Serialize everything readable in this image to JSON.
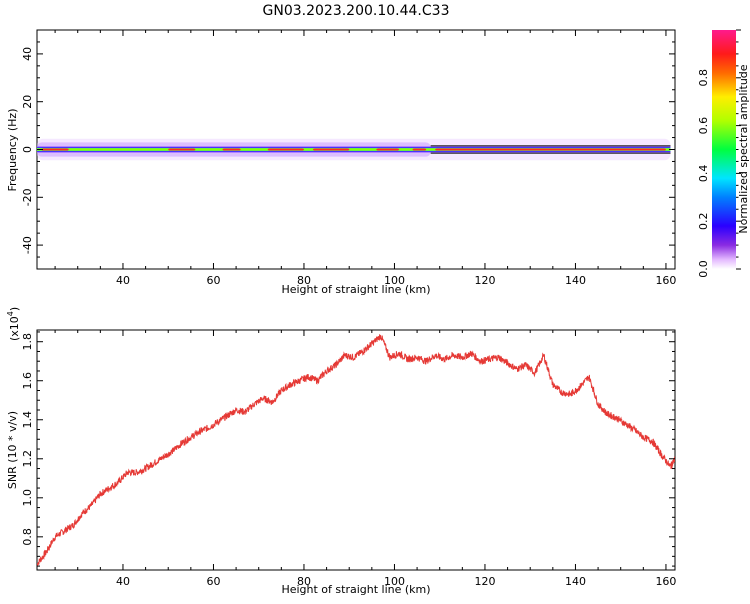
{
  "figure": {
    "title": "GN03.2023.200.10.44.C33"
  },
  "chart_data": [
    {
      "type": "heatmap",
      "xlabel": "Height of straight line (km)",
      "ylabel": "Frequency (Hz)",
      "xlim": [
        21,
        162
      ],
      "ylim": [
        -50,
        50
      ],
      "x_ticks": [
        40,
        60,
        80,
        100,
        120,
        140,
        160
      ],
      "y_ticks": [
        -40,
        -20,
        0,
        20,
        40
      ],
      "colorbar": {
        "label": "Normalized spectral amplitude",
        "range": [
          0,
          1
        ],
        "ticks": [
          "0.0",
          "0.2",
          "0.4",
          "0.6",
          "0.8"
        ],
        "colormap": "rainbow (magenta-blue-cyan-green-yellow-red-pink)"
      },
      "description_values": {
        "band_center_hz": 0,
        "band_halfwidth_hz": 1.5,
        "x_start": 21,
        "x_end": 161
      }
    },
    {
      "type": "line",
      "xlabel": "Height of straight line (km)",
      "ylabel": "SNR (10 * v/v)",
      "y_multiplier_label": "(x10",
      "y_multiplier_exp": "4",
      "y_multiplier_close": ")",
      "xlim": [
        21,
        162
      ],
      "ylim": [
        0.63,
        1.86
      ],
      "x_ticks": [
        40,
        60,
        80,
        100,
        120,
        140,
        160
      ],
      "y_ticks": [
        "0.8",
        "1.0",
        "1.2",
        "1.4",
        "1.6",
        "1.8"
      ],
      "series_color": "#e53935",
      "series": [
        {
          "x": [
            21,
            23,
            25,
            27,
            29,
            31,
            33,
            35,
            37,
            39,
            41,
            43,
            45,
            47,
            49,
            51,
            53,
            55,
            57,
            59,
            61,
            63,
            65,
            67,
            69,
            71,
            73,
            75,
            77,
            79,
            81,
            83,
            85,
            87,
            89,
            91,
            93,
            95,
            97,
            99,
            101,
            103,
            105,
            107,
            109,
            111,
            113,
            115,
            117,
            119,
            121,
            123,
            125,
            127,
            129,
            131,
            133,
            135,
            137,
            139,
            141,
            143,
            145,
            147,
            149,
            151,
            153,
            155,
            157,
            159,
            161,
            162
          ],
          "values": [
            0.66,
            0.72,
            0.8,
            0.83,
            0.86,
            0.92,
            0.96,
            1.02,
            1.05,
            1.08,
            1.13,
            1.13,
            1.15,
            1.18,
            1.21,
            1.24,
            1.28,
            1.31,
            1.34,
            1.36,
            1.39,
            1.42,
            1.45,
            1.44,
            1.48,
            1.51,
            1.49,
            1.55,
            1.58,
            1.6,
            1.62,
            1.6,
            1.65,
            1.68,
            1.73,
            1.72,
            1.75,
            1.79,
            1.83,
            1.72,
            1.74,
            1.71,
            1.72,
            1.7,
            1.73,
            1.71,
            1.73,
            1.72,
            1.74,
            1.7,
            1.71,
            1.72,
            1.69,
            1.66,
            1.68,
            1.64,
            1.73,
            1.58,
            1.54,
            1.53,
            1.57,
            1.62,
            1.48,
            1.43,
            1.41,
            1.38,
            1.35,
            1.31,
            1.29,
            1.22,
            1.16,
            1.2
          ]
        }
      ]
    }
  ]
}
